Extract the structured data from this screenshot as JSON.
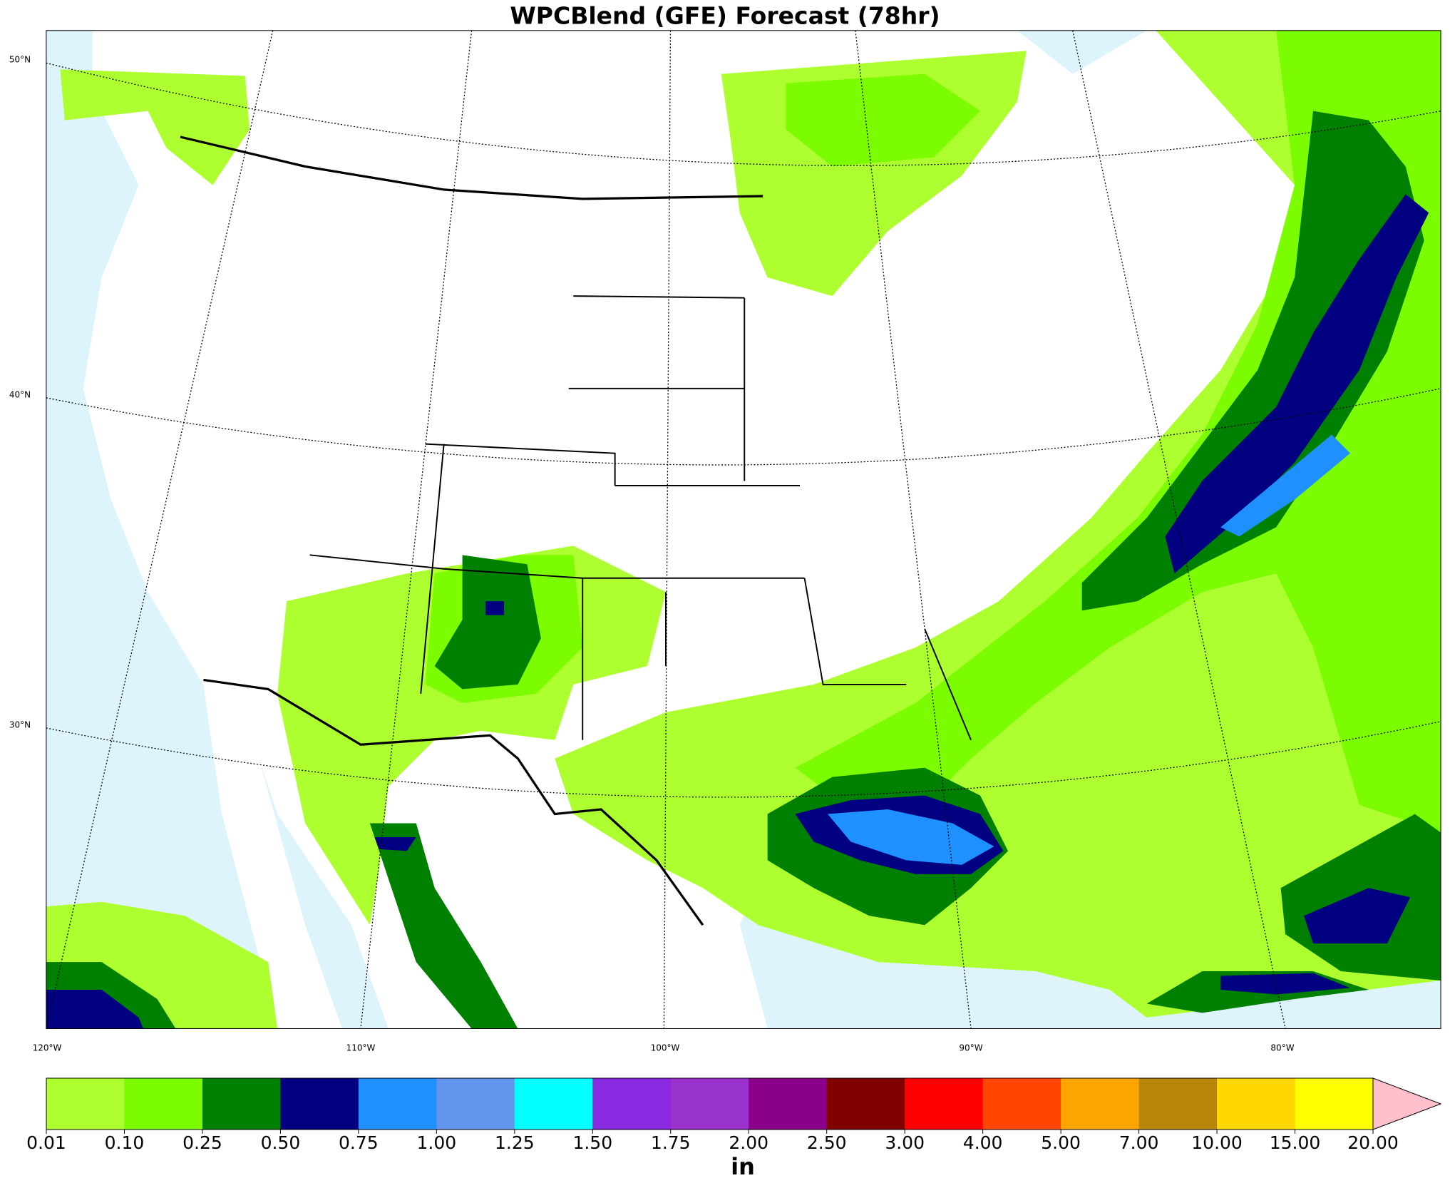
{
  "title": "WPCBlend (GFE) Forecast (78hr)",
  "map": {
    "lat_labels": [
      "50°N",
      "40°N",
      "30°N"
    ],
    "lon_labels": [
      "120°W",
      "110°W",
      "100°W",
      "90°W",
      "80°W"
    ]
  },
  "colorbar": {
    "ticks": [
      "0.01",
      "0.10",
      "0.25",
      "0.50",
      "0.75",
      "1.00",
      "1.25",
      "1.50",
      "1.75",
      "2.00",
      "2.50",
      "3.00",
      "4.00",
      "5.00",
      "7.00",
      "10.00",
      "15.00",
      "20.00"
    ],
    "colors": [
      "#adff2f",
      "#7cfc00",
      "#008000",
      "#000080",
      "#1e90ff",
      "#6495ed",
      "#00ffff",
      "#8a2be2",
      "#9932cc",
      "#8b008b",
      "#800000",
      "#ff0000",
      "#ff4500",
      "#ffa500",
      "#b8860b",
      "#ffd700",
      "#ffff00"
    ],
    "extend_color": "#ffc0cb",
    "unit": "in"
  }
}
